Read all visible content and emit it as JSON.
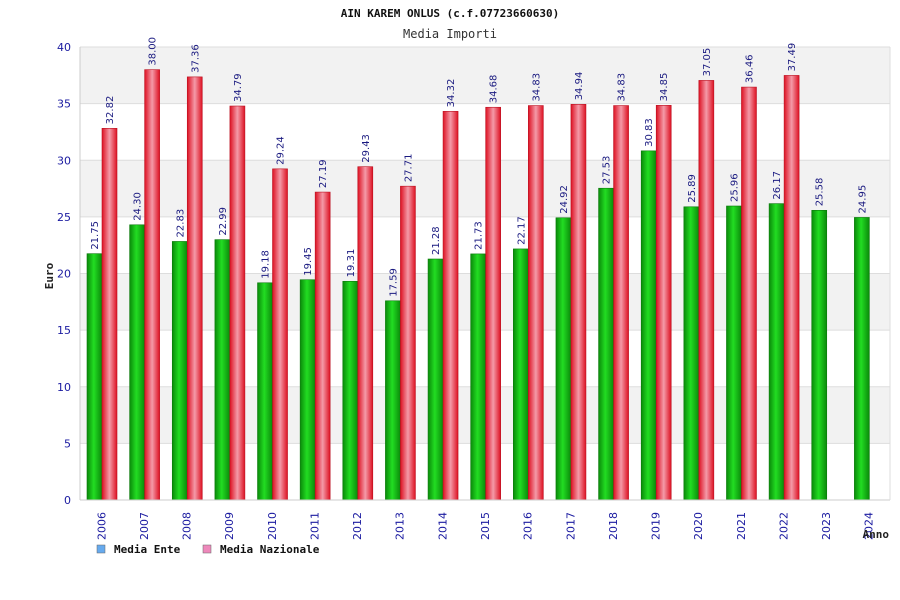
{
  "chart_data": {
    "type": "bar",
    "title": "AIN KAREM ONLUS (c.f.07723660630)",
    "subtitle": "Media Importi",
    "xlabel": "Anno",
    "ylabel": "Euro",
    "ylim": [
      0,
      40
    ],
    "yticks": [
      0,
      5,
      10,
      15,
      20,
      25,
      30,
      35,
      40
    ],
    "grid": true,
    "legend_position": "bottom-left",
    "categories": [
      "2006",
      "2007",
      "2008",
      "2009",
      "2010",
      "2011",
      "2012",
      "2013",
      "2014",
      "2015",
      "2016",
      "2017",
      "2018",
      "2019",
      "2020",
      "2021",
      "2022",
      "2023",
      "2024"
    ],
    "series": [
      {
        "name": "Media Ente",
        "color": "#11bb11",
        "legend_color": "#66aaee",
        "values": [
          21.75,
          24.3,
          22.83,
          22.99,
          19.18,
          19.45,
          19.31,
          17.59,
          21.28,
          21.73,
          22.17,
          24.92,
          27.53,
          30.83,
          25.89,
          25.96,
          26.17,
          25.58,
          24.95
        ],
        "labels": [
          "21.75",
          "24.30",
          "22.83",
          "22.99",
          "19.18",
          "19.45",
          "19.31",
          "17.59",
          "21.28",
          "21.73",
          "22.17",
          "24.92",
          "27.53",
          "30.83",
          "25.89",
          "25.96",
          "26.17",
          "25.58",
          "24.95"
        ]
      },
      {
        "name": "Media Nazionale",
        "color": "#ee2233",
        "legend_color": "#ee88bb",
        "values": [
          32.82,
          38.0,
          37.36,
          34.79,
          29.24,
          27.19,
          29.43,
          27.71,
          34.32,
          34.68,
          34.83,
          34.94,
          34.83,
          34.85,
          37.05,
          36.46,
          37.49,
          null,
          null
        ],
        "labels": [
          "32.82",
          "38.00",
          "37.36",
          "34.79",
          "29.24",
          "27.19",
          "29.43",
          "27.71",
          "34.32",
          "34.68",
          "34.83",
          "34.94",
          "34.83",
          "34.85",
          "37.05",
          "36.46",
          "37.49",
          null,
          null
        ]
      }
    ]
  }
}
